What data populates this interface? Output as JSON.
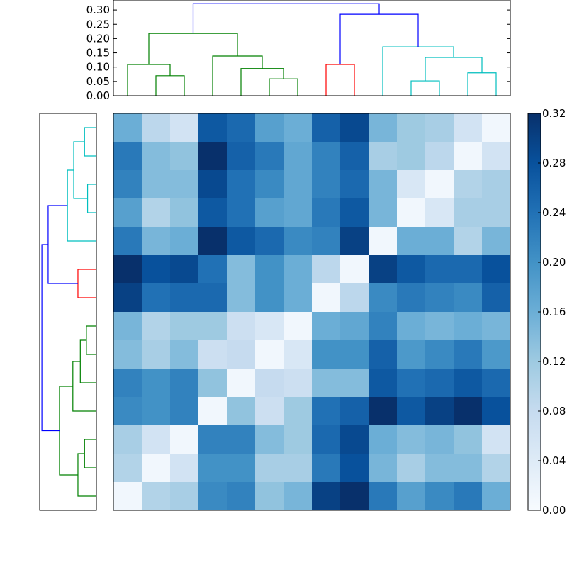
{
  "chart_data": {
    "type": "heatmap",
    "title": "",
    "xlabel": "",
    "ylabel": "",
    "colormap": "Blues",
    "color_range": [
      0.0,
      0.32
    ],
    "colorbar": {
      "ticks": [
        0.0,
        0.04,
        0.08,
        0.12,
        0.16,
        0.2,
        0.24,
        0.28,
        0.32
      ],
      "tick_labels": [
        "0.00",
        "0.04",
        "0.08",
        "0.12",
        "0.16",
        "0.20",
        "0.24",
        "0.28",
        "0.32"
      ]
    },
    "matrix": [
      [
        0.16,
        0.09,
        0.06,
        0.27,
        0.25,
        0.18,
        0.16,
        0.26,
        0.29,
        0.15,
        0.12,
        0.11,
        0.06,
        0.01
      ],
      [
        0.23,
        0.14,
        0.13,
        0.32,
        0.26,
        0.23,
        0.17,
        0.22,
        0.26,
        0.11,
        0.12,
        0.09,
        0.01,
        0.06
      ],
      [
        0.22,
        0.14,
        0.14,
        0.29,
        0.24,
        0.21,
        0.17,
        0.22,
        0.25,
        0.15,
        0.05,
        0.01,
        0.1,
        0.11
      ],
      [
        0.18,
        0.1,
        0.13,
        0.27,
        0.24,
        0.18,
        0.17,
        0.23,
        0.27,
        0.15,
        0.01,
        0.05,
        0.11,
        0.11
      ],
      [
        0.23,
        0.15,
        0.16,
        0.33,
        0.27,
        0.25,
        0.21,
        0.22,
        0.3,
        0.01,
        0.16,
        0.16,
        0.1,
        0.15
      ],
      [
        0.33,
        0.28,
        0.29,
        0.24,
        0.14,
        0.2,
        0.16,
        0.09,
        0.01,
        0.3,
        0.27,
        0.25,
        0.25,
        0.28
      ],
      [
        0.3,
        0.24,
        0.25,
        0.25,
        0.14,
        0.2,
        0.16,
        0.01,
        0.09,
        0.21,
        0.23,
        0.22,
        0.21,
        0.26
      ],
      [
        0.15,
        0.1,
        0.12,
        0.12,
        0.07,
        0.05,
        0.01,
        0.16,
        0.17,
        0.22,
        0.16,
        0.15,
        0.16,
        0.15
      ],
      [
        0.14,
        0.11,
        0.14,
        0.07,
        0.08,
        0.01,
        0.05,
        0.2,
        0.2,
        0.26,
        0.19,
        0.21,
        0.23,
        0.19
      ],
      [
        0.22,
        0.2,
        0.22,
        0.13,
        0.01,
        0.08,
        0.07,
        0.14,
        0.14,
        0.27,
        0.24,
        0.25,
        0.27,
        0.25
      ],
      [
        0.21,
        0.2,
        0.22,
        0.01,
        0.13,
        0.07,
        0.12,
        0.24,
        0.26,
        0.33,
        0.27,
        0.3,
        0.32,
        0.28
      ],
      [
        0.11,
        0.06,
        0.01,
        0.22,
        0.22,
        0.14,
        0.12,
        0.25,
        0.29,
        0.16,
        0.14,
        0.15,
        0.13,
        0.06
      ],
      [
        0.1,
        0.01,
        0.06,
        0.2,
        0.2,
        0.11,
        0.11,
        0.23,
        0.28,
        0.15,
        0.11,
        0.14,
        0.14,
        0.1
      ],
      [
        0.01,
        0.1,
        0.11,
        0.21,
        0.22,
        0.13,
        0.15,
        0.3,
        0.33,
        0.23,
        0.18,
        0.21,
        0.23,
        0.16
      ]
    ],
    "top_dendrogram": {
      "y_ticks": [
        0.0,
        0.05,
        0.1,
        0.15,
        0.2,
        0.25,
        0.3
      ],
      "y_tick_labels": [
        "0.00",
        "0.05",
        "0.10",
        "0.15",
        "0.20",
        "0.25",
        "0.30"
      ],
      "ylim": [
        0,
        0.335
      ],
      "leaf_count": 14,
      "links": [
        {
          "left": 1,
          "right": 2,
          "left_h": 0,
          "right_h": 0,
          "height": 0.07,
          "color": "#008000"
        },
        {
          "left": 0,
          "right": 1.5,
          "left_h": 0,
          "right_h": 0.07,
          "height": 0.109,
          "color": "#008000"
        },
        {
          "left": 5,
          "right": 6,
          "left_h": 0,
          "right_h": 0,
          "height": 0.059,
          "color": "#008000"
        },
        {
          "left": 4,
          "right": 5.5,
          "left_h": 0,
          "right_h": 0.059,
          "height": 0.095,
          "color": "#008000"
        },
        {
          "left": 3,
          "right": 4.75,
          "left_h": 0,
          "right_h": 0.095,
          "height": 0.139,
          "color": "#008000"
        },
        {
          "left": 0.75,
          "right": 3.875,
          "left_h": 0.109,
          "right_h": 0.139,
          "height": 0.218,
          "color": "#008000"
        },
        {
          "left": 7,
          "right": 8,
          "left_h": 0,
          "right_h": 0,
          "height": 0.109,
          "color": "#ff0000"
        },
        {
          "left": 10,
          "right": 11,
          "left_h": 0,
          "right_h": 0,
          "height": 0.052,
          "color": "#00bfbf"
        },
        {
          "left": 12,
          "right": 13,
          "left_h": 0,
          "right_h": 0,
          "height": 0.08,
          "color": "#00bfbf"
        },
        {
          "left": 10.5,
          "right": 12.5,
          "left_h": 0.052,
          "right_h": 0.08,
          "height": 0.134,
          "color": "#00bfbf"
        },
        {
          "left": 9,
          "right": 11.5,
          "left_h": 0,
          "right_h": 0.134,
          "height": 0.171,
          "color": "#00bfbf"
        },
        {
          "left": 7.5,
          "right": 10.25,
          "left_h": 0.109,
          "right_h": 0.171,
          "height": 0.285,
          "color": "#0000ff"
        },
        {
          "left": 2.3125,
          "right": 8.875,
          "left_h": 0.218,
          "right_h": 0.285,
          "height": 0.322,
          "color": "#0000ff"
        }
      ]
    },
    "left_dendrogram": {
      "leaf_count": 14,
      "hlim": [
        0,
        0.335
      ],
      "links": [
        {
          "left": 0,
          "right": 1,
          "left_h": 0,
          "right_h": 0,
          "height": 0.07,
          "color": "#00bfbf"
        },
        {
          "left": 2,
          "right": 3,
          "left_h": 0,
          "right_h": 0,
          "height": 0.052,
          "color": "#00bfbf"
        },
        {
          "left": 0.5,
          "right": 2.5,
          "left_h": 0.07,
          "right_h": 0.052,
          "height": 0.134,
          "color": "#00bfbf"
        },
        {
          "left": 1.5,
          "right": 4,
          "left_h": 0.134,
          "right_h": 0,
          "height": 0.171,
          "color": "#00bfbf"
        },
        {
          "left": 5,
          "right": 6,
          "left_h": 0,
          "right_h": 0,
          "height": 0.109,
          "color": "#ff0000"
        },
        {
          "left": 2.75,
          "right": 5.5,
          "left_h": 0.171,
          "right_h": 0.109,
          "height": 0.285,
          "color": "#0000ff"
        },
        {
          "left": 7,
          "right": 8,
          "left_h": 0,
          "right_h": 0,
          "height": 0.059,
          "color": "#008000"
        },
        {
          "left": 7.5,
          "right": 9,
          "left_h": 0.059,
          "right_h": 0,
          "height": 0.095,
          "color": "#008000"
        },
        {
          "left": 8.25,
          "right": 10,
          "left_h": 0.095,
          "right_h": 0,
          "height": 0.139,
          "color": "#008000"
        },
        {
          "left": 11,
          "right": 12,
          "left_h": 0,
          "right_h": 0,
          "height": 0.07,
          "color": "#008000"
        },
        {
          "left": 11.5,
          "right": 13,
          "left_h": 0.07,
          "right_h": 0,
          "height": 0.109,
          "color": "#008000"
        },
        {
          "left": 9.125,
          "right": 12.25,
          "left_h": 0.139,
          "right_h": 0.109,
          "height": 0.218,
          "color": "#008000"
        },
        {
          "left": 4.125,
          "right": 10.6875,
          "left_h": 0.285,
          "right_h": 0.218,
          "height": 0.322,
          "color": "#0000ff"
        }
      ]
    }
  }
}
